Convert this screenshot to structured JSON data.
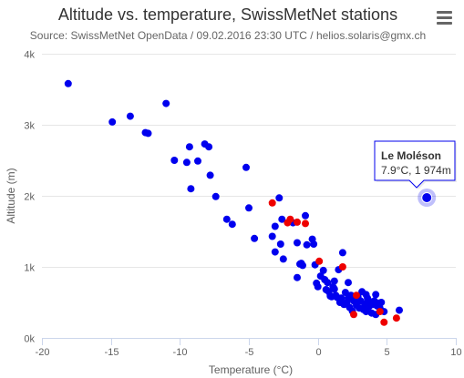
{
  "chart_data": {
    "type": "scatter",
    "title": "Altitude vs. temperature, SwissMetNet stations",
    "subtitle": "Source: SwissMetNet OpenData / 09.02.2016 23:30 UTC / helios.solaris@gmx.ch",
    "xlabel": "Temperature (°C)",
    "ylabel": "Altitude (m)",
    "xlim": [
      -20,
      10
    ],
    "ylim": [
      0,
      4000
    ],
    "x_ticks": [
      -20,
      -15,
      -10,
      -5,
      0,
      5,
      10
    ],
    "y_ticks": [
      0,
      1000,
      2000,
      3000,
      4000
    ],
    "x_tick_labels": [
      "-20",
      "-15",
      "-10",
      "-5",
      "0",
      "5",
      "10"
    ],
    "y_tick_labels": [
      "0k",
      "1k",
      "2k",
      "3k",
      "4k"
    ],
    "grid": "horizontal",
    "colors": {
      "blue": "#0000ee",
      "red": "#ee0000"
    },
    "series": [
      {
        "color": "#0000ee",
        "points": [
          [
            -18.1,
            3580
          ],
          [
            -14.9,
            3040
          ],
          [
            -13.6,
            3120
          ],
          [
            -12.5,
            2890
          ],
          [
            -12.3,
            2880
          ],
          [
            -11.0,
            3300
          ],
          [
            -10.4,
            2500
          ],
          [
            -9.5,
            2470
          ],
          [
            -9.3,
            2690
          ],
          [
            -9.2,
            2100
          ],
          [
            -8.7,
            2490
          ],
          [
            -8.2,
            2730
          ],
          [
            -7.9,
            2690
          ],
          [
            -7.8,
            2290
          ],
          [
            -7.4,
            1990
          ],
          [
            -6.6,
            1670
          ],
          [
            -6.2,
            1600
          ],
          [
            -5.2,
            2400
          ],
          [
            -5.0,
            1830
          ],
          [
            -4.6,
            1400
          ],
          [
            -3.3,
            1430
          ],
          [
            -3.1,
            1570
          ],
          [
            -3.1,
            1210
          ],
          [
            -2.8,
            1970
          ],
          [
            -2.7,
            1320
          ],
          [
            -2.6,
            1670
          ],
          [
            -2.5,
            1110
          ],
          [
            -1.8,
            1620
          ],
          [
            -1.5,
            1340
          ],
          [
            -1.3,
            1040
          ],
          [
            -1.2,
            1050
          ],
          [
            -1.1,
            1020
          ],
          [
            -0.9,
            1720
          ],
          [
            -0.8,
            1310
          ],
          [
            -0.4,
            1390
          ],
          [
            -0.3,
            1320
          ],
          [
            -0.2,
            1030
          ],
          [
            -1.5,
            850
          ],
          [
            -0.1,
            770
          ],
          [
            0.0,
            720
          ],
          [
            0.2,
            870
          ],
          [
            0.4,
            950
          ],
          [
            0.5,
            820
          ],
          [
            0.7,
            780
          ],
          [
            0.8,
            650
          ],
          [
            0.9,
            590
          ],
          [
            1.0,
            580
          ],
          [
            1.1,
            720
          ],
          [
            1.2,
            690
          ],
          [
            1.3,
            600
          ],
          [
            1.4,
            570
          ],
          [
            1.5,
            960
          ],
          [
            1.6,
            500
          ],
          [
            1.7,
            560
          ],
          [
            1.8,
            1200
          ],
          [
            1.9,
            470
          ],
          [
            2.0,
            640
          ],
          [
            2.1,
            500
          ],
          [
            2.2,
            560
          ],
          [
            2.3,
            430
          ],
          [
            2.4,
            600
          ],
          [
            2.5,
            380
          ],
          [
            2.6,
            520
          ],
          [
            2.7,
            540
          ],
          [
            2.8,
            460
          ],
          [
            2.9,
            580
          ],
          [
            3.0,
            420
          ],
          [
            3.1,
            520
          ],
          [
            3.2,
            650
          ],
          [
            3.3,
            400
          ],
          [
            3.4,
            480
          ],
          [
            3.5,
            370
          ],
          [
            3.6,
            560
          ],
          [
            3.7,
            440
          ],
          [
            3.8,
            510
          ],
          [
            3.9,
            350
          ],
          [
            4.0,
            470
          ],
          [
            4.1,
            520
          ],
          [
            4.2,
            330
          ],
          [
            4.3,
            450
          ],
          [
            4.4,
            490
          ],
          [
            4.5,
            420
          ],
          [
            4.6,
            500
          ],
          [
            4.8,
            370
          ],
          [
            5.9,
            390
          ],
          [
            1.2,
            800
          ],
          [
            0.6,
            680
          ],
          [
            2.2,
            780
          ],
          [
            3.5,
            610
          ],
          [
            4.2,
            610
          ]
        ]
      },
      {
        "color": "#ee0000",
        "points": [
          [
            -3.3,
            1900
          ],
          [
            -2.2,
            1620
          ],
          [
            -2.0,
            1670
          ],
          [
            -1.5,
            1630
          ],
          [
            -0.9,
            1610
          ],
          [
            0.1,
            1080
          ],
          [
            1.8,
            1000
          ],
          [
            2.6,
            330
          ],
          [
            2.8,
            600
          ],
          [
            4.5,
            370
          ],
          [
            4.8,
            220
          ],
          [
            5.7,
            280
          ]
        ]
      }
    ],
    "tooltip": {
      "station": "Le Moléson",
      "value": "7.9°C, 1 974m",
      "x": 7.9,
      "y": 1974
    }
  },
  "menu": {
    "icon": "hamburger-menu-icon"
  }
}
